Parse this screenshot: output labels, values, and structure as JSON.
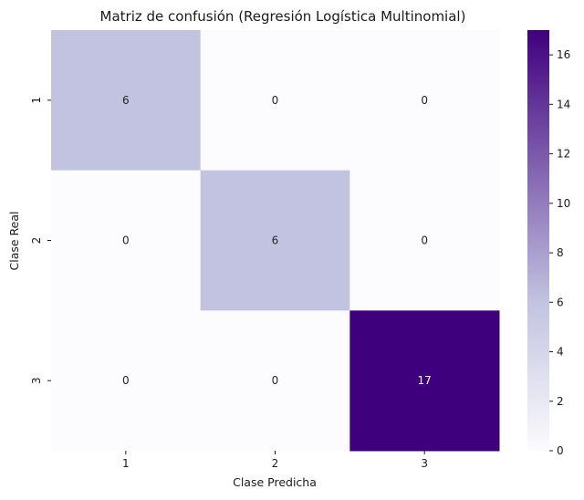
{
  "chart_data": {
    "type": "heatmap",
    "title": "Matriz de confusión (Regresión Logística Multinomial)",
    "xlabel": "Clase Predicha",
    "ylabel": "Clase Real",
    "x_categories": [
      "1",
      "2",
      "3"
    ],
    "y_categories": [
      "1",
      "2",
      "3"
    ],
    "values": [
      [
        6,
        0,
        0
      ],
      [
        0,
        6,
        0
      ],
      [
        0,
        0,
        17
      ]
    ],
    "colormap": "Purples",
    "colorbar": {
      "vmin": 0,
      "vmax": 17,
      "ticks": [
        "0",
        "2",
        "4",
        "6",
        "8",
        "10",
        "12",
        "14",
        "16"
      ]
    },
    "colors": {
      "low": "#fcfbfd",
      "mid": "#c2c3e0",
      "high": "#3f007d"
    }
  }
}
